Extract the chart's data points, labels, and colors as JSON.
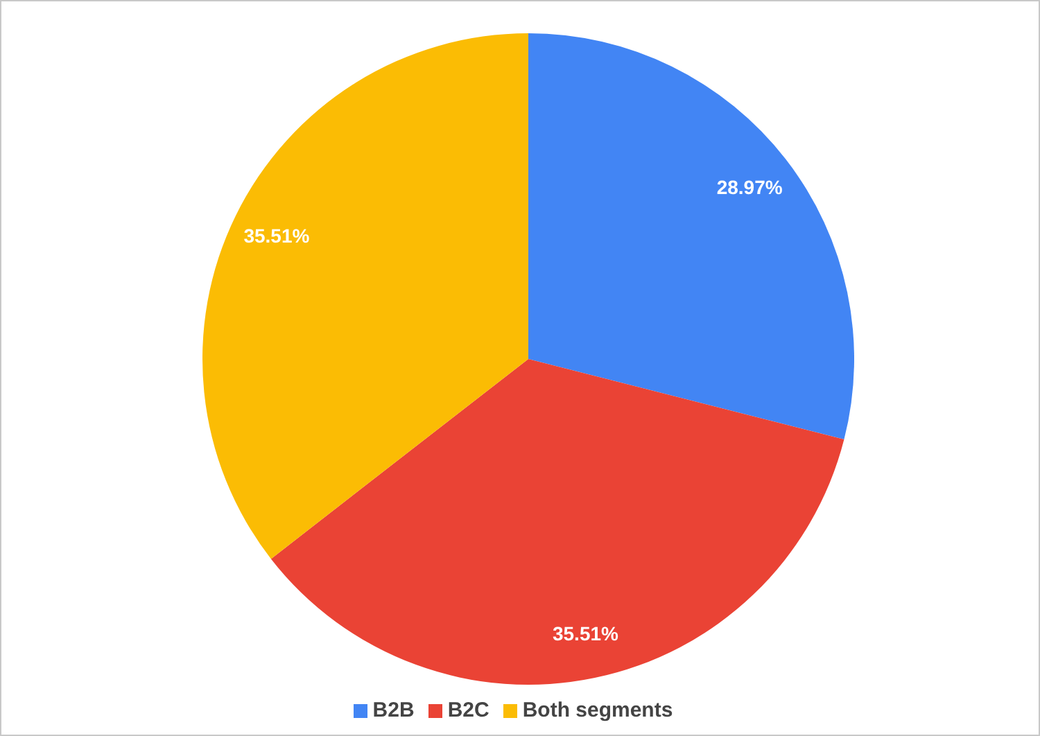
{
  "chart_data": {
    "type": "pie",
    "categories": [
      "B2B",
      "B2C",
      "Both segments"
    ],
    "values": [
      28.97,
      35.51,
      35.51
    ],
    "colors": [
      "#4285f4",
      "#ea4335",
      "#fbbc04"
    ],
    "value_labels": [
      "28.97%",
      "35.51%",
      "35.51%"
    ],
    "legend": "bottom"
  }
}
